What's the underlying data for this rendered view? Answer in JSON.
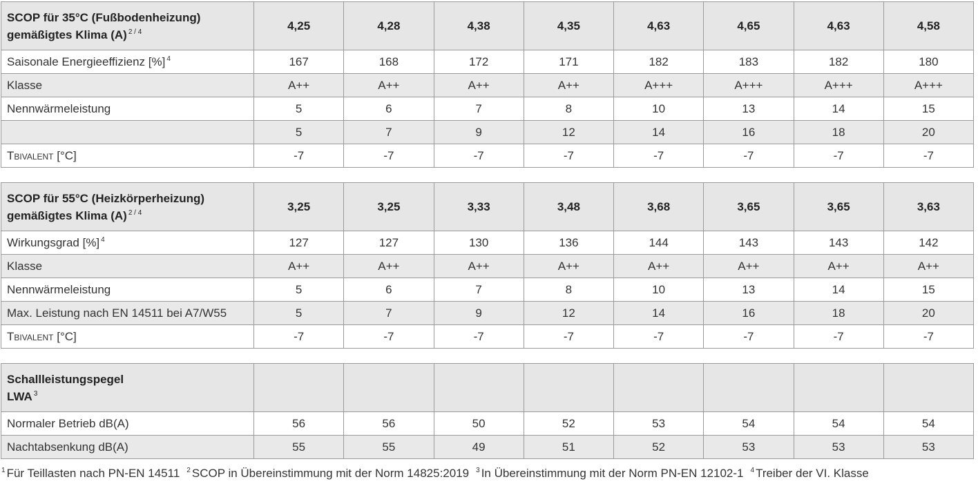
{
  "tables": [
    {
      "header": {
        "title": [
          "SCOP für 35°C (Fußbodenheizung)",
          "gemäßigtes Klima (A)"
        ],
        "sup": "2 / 4",
        "values": [
          "4,25",
          "4,28",
          "4,38",
          "4,35",
          "4,63",
          "4,65",
          "4,63",
          "4,58"
        ]
      },
      "rows": [
        {
          "label": "Saisonale Energieeffizienz [%]",
          "sup": "4",
          "values": [
            "167",
            "168",
            "172",
            "171",
            "182",
            "183",
            "182",
            "180"
          ]
        },
        {
          "label": "Klasse",
          "values": [
            "A++",
            "A++",
            "A++",
            "A++",
            "A+++",
            "A+++",
            "A+++",
            "A+++"
          ]
        },
        {
          "label": "Nennwärmeleistung",
          "values": [
            "5",
            "6",
            "7",
            "8",
            "10",
            "13",
            "14",
            "15"
          ]
        },
        {
          "values": [
            "5",
            "7",
            "9",
            "12",
            "14",
            "16",
            "18",
            "20"
          ]
        },
        {
          "label": "Tbivalent [°C]",
          "values": [
            "-7",
            "-7",
            "-7",
            "-7",
            "-7",
            "-7",
            "-7",
            "-7"
          ]
        }
      ]
    },
    {
      "header": {
        "title": [
          "SCOP für 55°C (Heizkörperheizung)",
          "gemäßigtes Klima (A)"
        ],
        "sup": "2 / 4",
        "values": [
          "3,25",
          "3,25",
          "3,33",
          "3,48",
          "3,68",
          "3,65",
          "3,65",
          "3,63"
        ]
      },
      "rows": [
        {
          "label": "Wirkungsgrad [%]",
          "sup": "4",
          "values": [
            "127",
            "127",
            "130",
            "136",
            "144",
            "143",
            "143",
            "142"
          ]
        },
        {
          "label": "Klasse",
          "values": [
            "A++",
            "A++",
            "A++",
            "A++",
            "A++",
            "A++",
            "A++",
            "A++"
          ]
        },
        {
          "label": "Nennwärmeleistung",
          "values": [
            "5",
            "6",
            "7",
            "8",
            "10",
            "13",
            "14",
            "15"
          ]
        },
        {
          "label": "Max. Leistung nach EN 14511 bei A7/W55",
          "values": [
            "5",
            "7",
            "9",
            "12",
            "14",
            "16",
            "18",
            "20"
          ]
        },
        {
          "label": "Tbivalent [°C]",
          "values": [
            "-7",
            "-7",
            "-7",
            "-7",
            "-7",
            "-7",
            "-7",
            "-7"
          ]
        }
      ]
    },
    {
      "header": {
        "title": [
          "Schallleistungspegel",
          "LWA"
        ],
        "sup": "3"
      },
      "rows": [
        {
          "label": "Normaler Betrieb dB(A)",
          "values": [
            "56",
            "56",
            "50",
            "52",
            "53",
            "54",
            "54",
            "54"
          ]
        },
        {
          "label": "Nachtabsenkung dB(A)",
          "values": [
            "55",
            "55",
            "49",
            "51",
            "52",
            "53",
            "53",
            "53"
          ]
        }
      ]
    }
  ],
  "footnotes": [
    {
      "sup": "1",
      "text": "Für Teillasten nach PN-EN 14511"
    },
    {
      "sup": "2",
      "text": "SCOP in Übereinstimmung mit der Norm 14825:2019"
    },
    {
      "sup": "3",
      "text": "In Übereinstimmung mit der Norm PN-EN 12102-1"
    },
    {
      "sup": "4",
      "text": "Treiber der VI. Klasse"
    }
  ]
}
